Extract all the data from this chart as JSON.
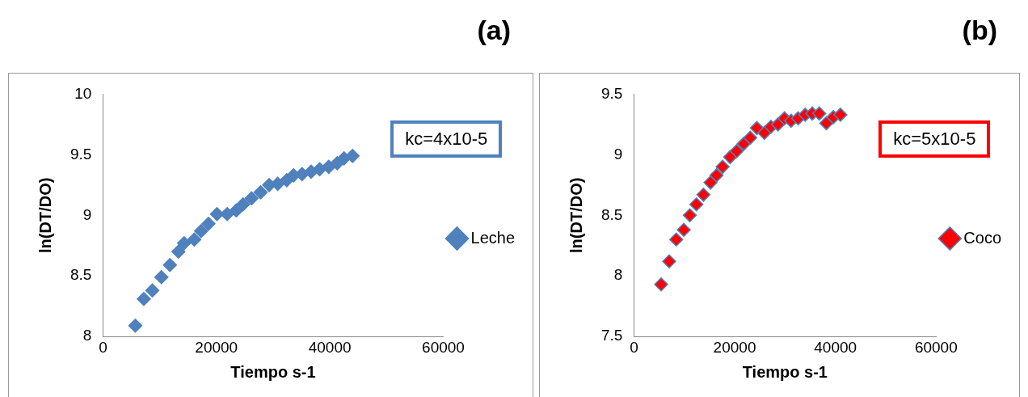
{
  "chart_data": [
    {
      "type": "scatter",
      "title": "(a)",
      "xlabel": "Tiempo s-1",
      "ylabel": "ln(DT/DO)",
      "annotations": [
        "kc=4x10-5"
      ],
      "legend": "right",
      "marker": "diamond",
      "grid": false,
      "xlim": [
        0,
        60000
      ],
      "xticks": [
        0,
        20000,
        40000,
        60000
      ],
      "ylim": [
        8,
        10
      ],
      "yticks": [
        8,
        8.5,
        9,
        9.5,
        10
      ],
      "series": [
        {
          "name": "Leche",
          "color": "#4f81bd",
          "x": [
            5700,
            7200,
            8700,
            10300,
            11800,
            13300,
            14300,
            16100,
            17300,
            18600,
            20100,
            21900,
            23500,
            24700,
            26200,
            27800,
            29300,
            30800,
            32400,
            33600,
            35100,
            36700,
            38200,
            39800,
            41300,
            42500,
            44000
          ],
          "values": [
            8.09,
            8.31,
            8.38,
            8.49,
            8.59,
            8.7,
            8.77,
            8.8,
            8.87,
            8.93,
            9.01,
            9.01,
            9.04,
            9.09,
            9.14,
            9.19,
            9.25,
            9.26,
            9.29,
            9.33,
            9.34,
            9.36,
            9.38,
            9.4,
            9.43,
            9.47,
            9.49
          ]
        }
      ]
    },
    {
      "type": "scatter",
      "title": "(b)",
      "xlabel": "Tiempo s-1",
      "ylabel": "ln(DT/DO)",
      "annotations": [
        "kc=5x10-5"
      ],
      "legend": "right",
      "marker": "diamond",
      "grid": false,
      "xlim": [
        0,
        60000
      ],
      "xticks": [
        0,
        20000,
        40000,
        60000
      ],
      "ylim": [
        7.5,
        9.5
      ],
      "yticks": [
        7.5,
        8,
        8.5,
        9,
        9.5
      ],
      "series": [
        {
          "name": "Coco",
          "color": "#ff0000",
          "x": [
            5400,
            7000,
            8400,
            9900,
            11100,
            12400,
            13800,
            15200,
            16400,
            17600,
            19100,
            20400,
            21800,
            23100,
            24400,
            25900,
            27200,
            28600,
            29900,
            31200,
            32600,
            34000,
            35400,
            36800,
            38200,
            39600,
            41000
          ],
          "values": [
            7.93,
            8.12,
            8.3,
            8.38,
            8.5,
            8.59,
            8.67,
            8.77,
            8.83,
            8.9,
            8.98,
            9.03,
            9.09,
            9.14,
            9.22,
            9.18,
            9.23,
            9.25,
            9.3,
            9.28,
            9.3,
            9.33,
            9.34,
            9.34,
            9.26,
            9.31,
            9.33
          ]
        }
      ]
    }
  ]
}
